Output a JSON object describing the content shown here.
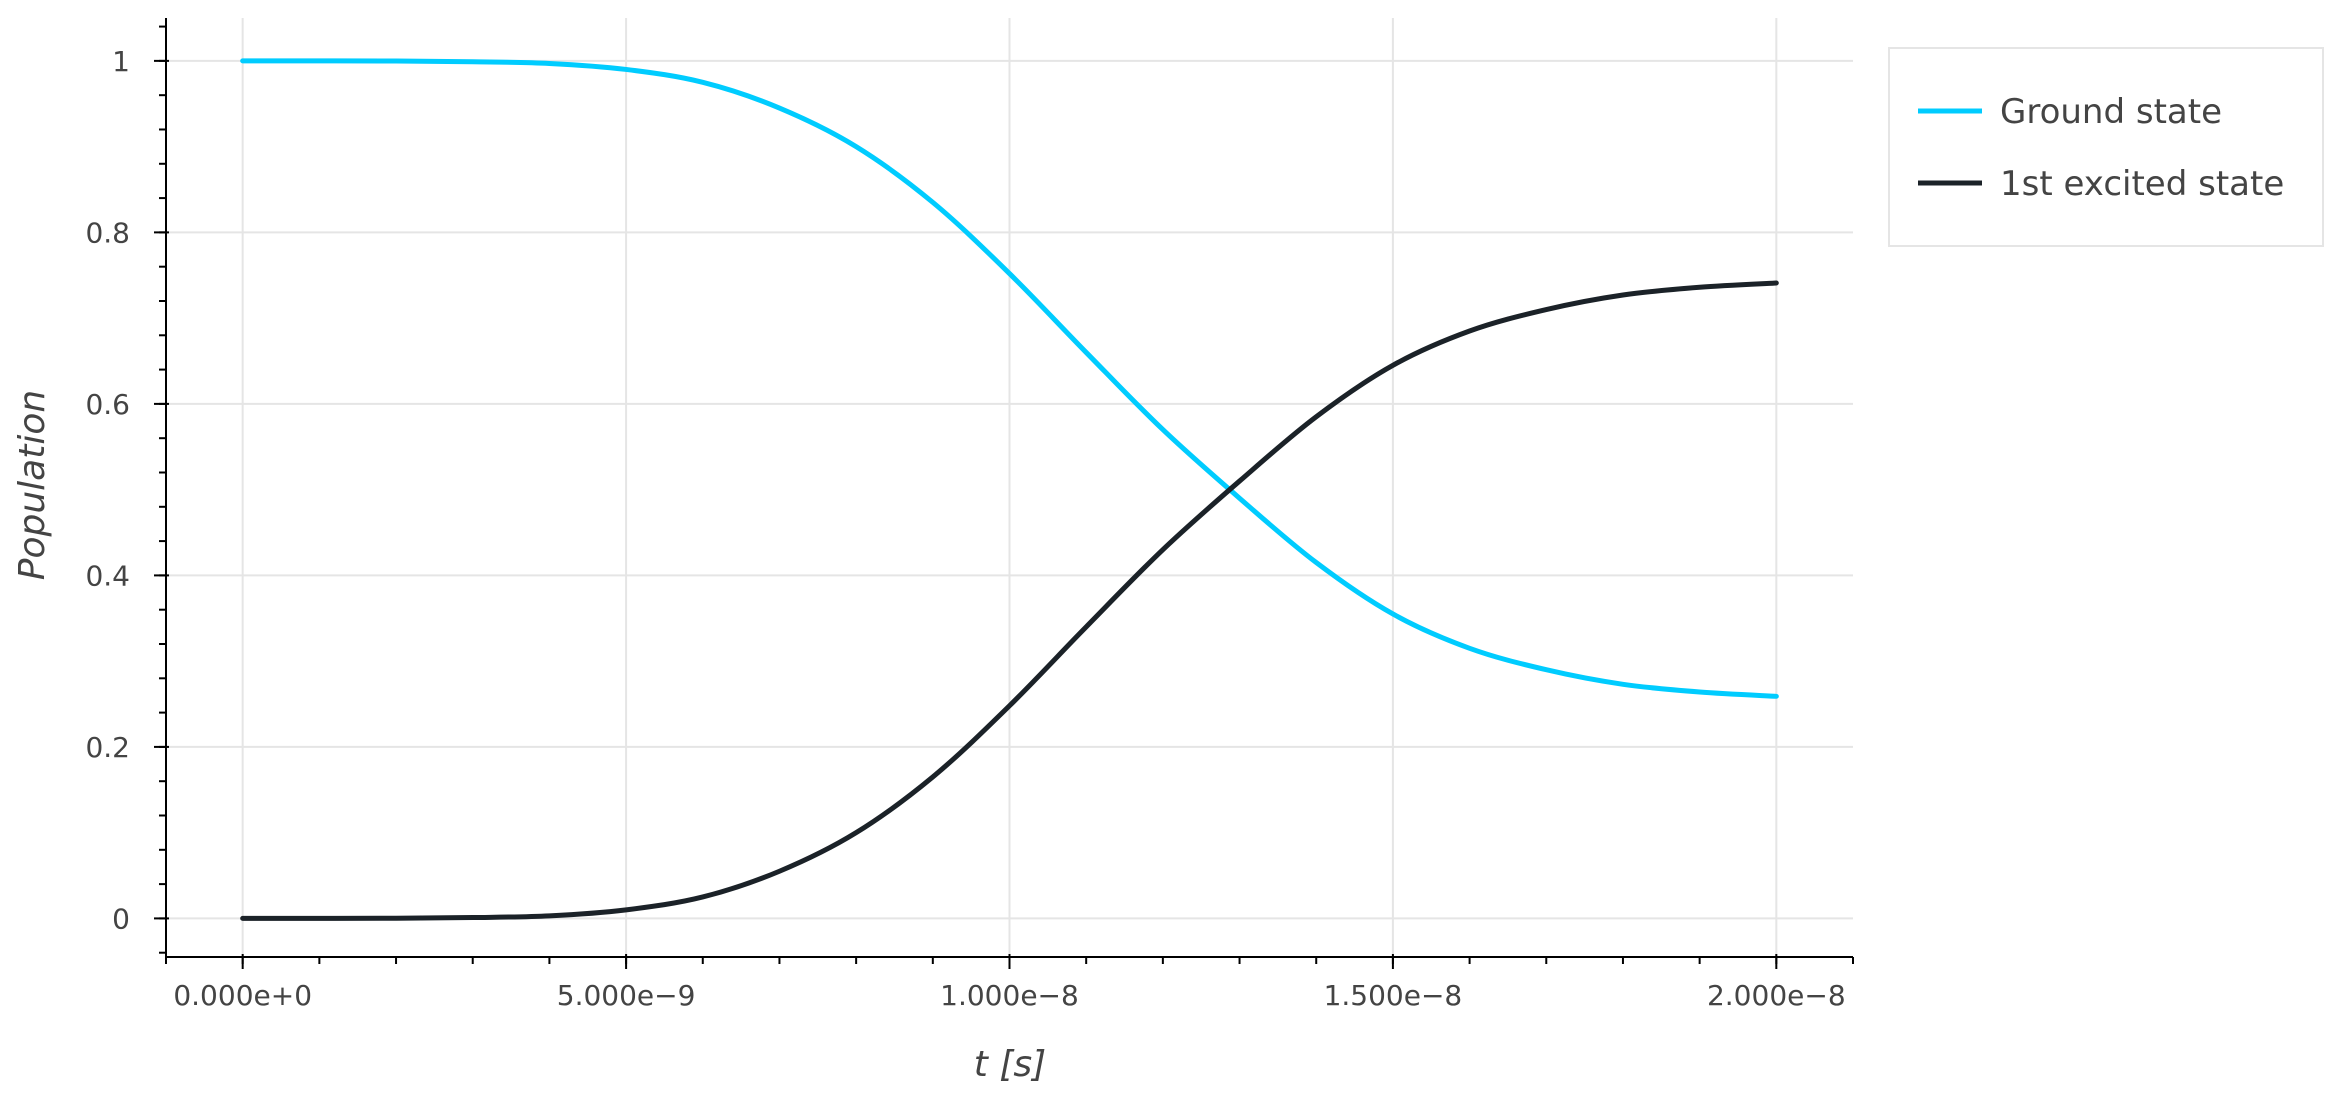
{
  "chart_data": {
    "type": "line",
    "xlabel": "t [s]",
    "ylabel": "Population",
    "xlim": [
      -1e-09,
      2.1e-08
    ],
    "ylim": [
      -0.045,
      1.05
    ],
    "x_ticks": [
      0,
      5e-09,
      1e-08,
      1.5e-08,
      2e-08
    ],
    "x_tick_labels": [
      "0.000e+0",
      "5.000e−9",
      "1.000e−8",
      "1.500e−8",
      "2.000e−8"
    ],
    "y_ticks": [
      0,
      0.2,
      0.4,
      0.6,
      0.8,
      1
    ],
    "y_tick_labels": [
      "0",
      "0.2",
      "0.4",
      "0.6",
      "0.8",
      "1"
    ],
    "grid": true,
    "legend_position": "outside-right-top",
    "x": [
      0,
      1e-09,
      2e-09,
      3e-09,
      4e-09,
      5e-09,
      6e-09,
      7e-09,
      8e-09,
      9e-09,
      1e-08,
      1.1e-08,
      1.2e-08,
      1.3e-08,
      1.4e-08,
      1.5e-08,
      1.6e-08,
      1.7e-08,
      1.8e-08,
      1.9e-08,
      2e-08
    ],
    "series": [
      {
        "name": "Ground state",
        "color": "#00ccff",
        "values": [
          1.0,
          1.0,
          0.9998,
          0.999,
          0.997,
          0.99,
          0.975,
          0.945,
          0.9,
          0.835,
          0.752,
          0.66,
          0.57,
          0.49,
          0.415,
          0.355,
          0.315,
          0.29,
          0.273,
          0.264,
          0.259
        ]
      },
      {
        "name": "1st excited state",
        "color": "#1b2228",
        "values": [
          0.0,
          0.0,
          0.0002,
          0.001,
          0.003,
          0.01,
          0.025,
          0.055,
          0.1,
          0.165,
          0.248,
          0.34,
          0.43,
          0.51,
          0.585,
          0.645,
          0.685,
          0.71,
          0.727,
          0.736,
          0.741
        ]
      }
    ]
  }
}
